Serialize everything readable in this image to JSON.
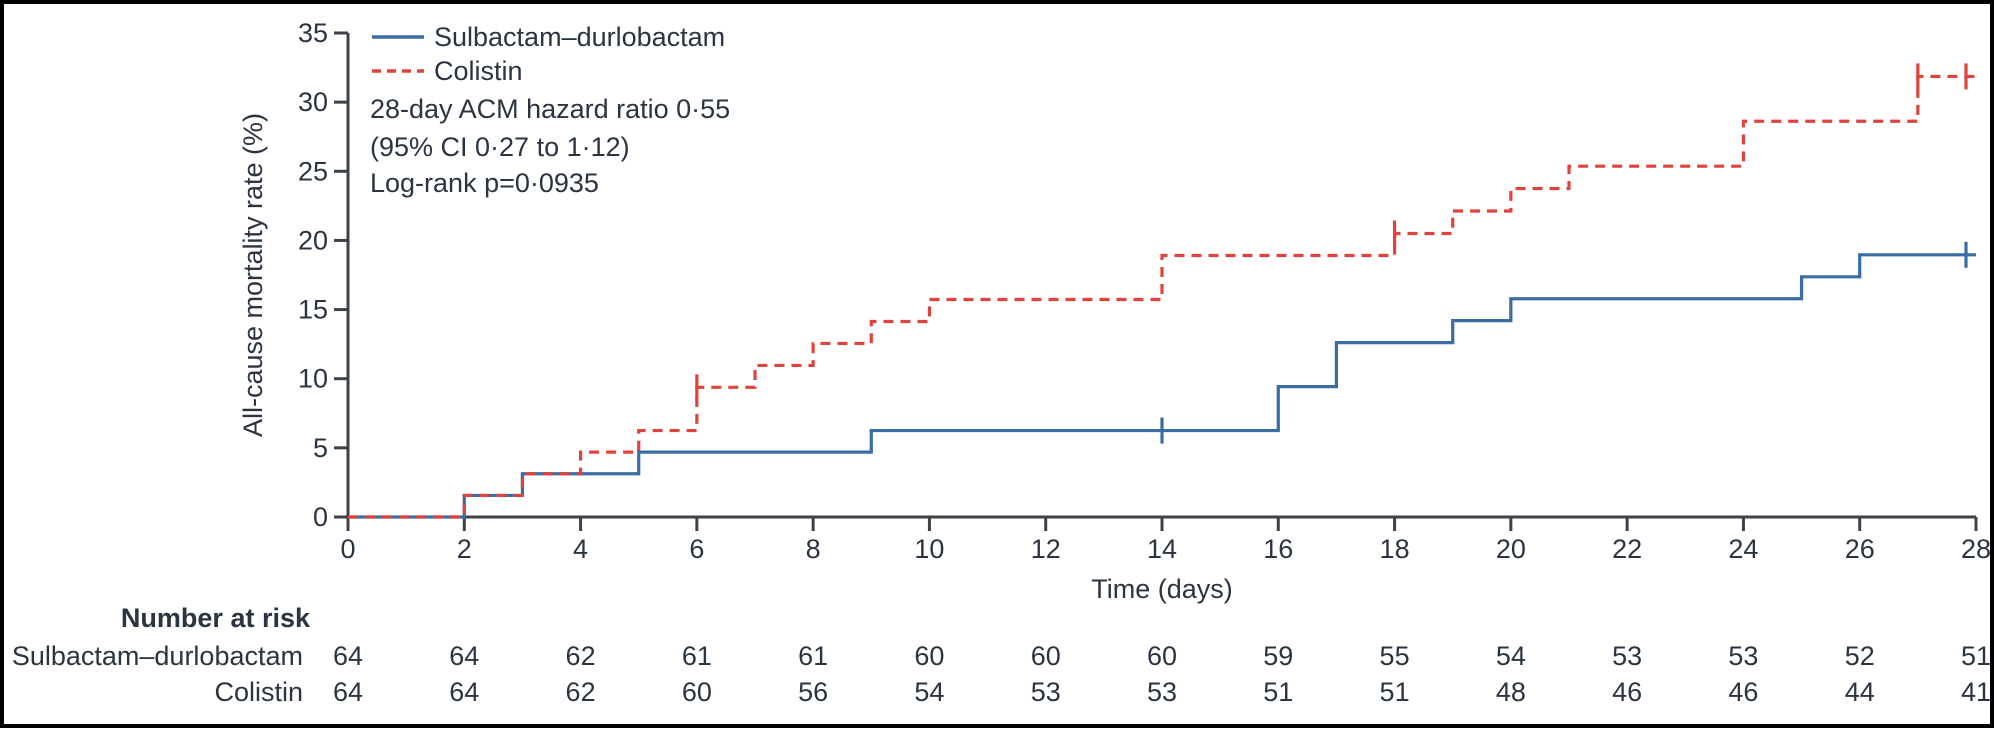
{
  "figure": {
    "y_axis_title": "All-cause mortality rate (%)",
    "x_axis_title": "Time (days)",
    "legend": {
      "items": [
        {
          "label": "Sulbactam–durlobactam",
          "color": "#3A6DA6",
          "line_style": "solid"
        },
        {
          "label": "Colistin",
          "color": "#E0433C",
          "line_style": "dashed"
        }
      ]
    },
    "annotations": {
      "line1": "28-day ACM hazard ratio 0·55",
      "line2": "(95% CI 0·27 to 1·12)",
      "line3": "Log-rank p=0·0935"
    },
    "risk_table": {
      "title": "Number at risk",
      "rows": [
        {
          "label": "Sulbactam–durlobactam",
          "values": [
            64,
            64,
            62,
            61,
            61,
            60,
            60,
            60,
            59,
            55,
            54,
            53,
            53,
            52,
            51
          ]
        },
        {
          "label": "Colistin",
          "values": [
            64,
            64,
            62,
            60,
            56,
            54,
            53,
            53,
            51,
            51,
            48,
            46,
            46,
            44,
            41
          ]
        }
      ]
    },
    "colors": {
      "axis": "#3d4248",
      "text": "#2b3542",
      "border": "#000000",
      "background": "#ffffff"
    }
  },
  "chart_data": {
    "type": "line",
    "subtype": "kaplan-meier-cumulative-incidence-step",
    "title": "",
    "xlabel": "Time (days)",
    "ylabel": "All-cause mortality rate (%)",
    "xlim": [
      0,
      28
    ],
    "ylim": [
      0,
      35
    ],
    "x_ticks": [
      0,
      2,
      4,
      6,
      8,
      10,
      12,
      14,
      16,
      18,
      20,
      22,
      24,
      26,
      28
    ],
    "y_ticks": [
      0,
      5,
      10,
      15,
      20,
      25,
      30,
      35
    ],
    "grid": false,
    "legend_position": "top-left-inside",
    "series": [
      {
        "name": "Sulbactam–durlobactam",
        "color": "#3A6DA6",
        "dash": "solid",
        "step_points": [
          [
            2,
            1.56
          ],
          [
            3,
            3.13
          ],
          [
            5,
            4.69
          ],
          [
            9,
            6.25
          ],
          [
            16,
            9.43
          ],
          [
            17,
            12.61
          ],
          [
            19,
            14.2
          ],
          [
            20,
            15.78
          ],
          [
            25,
            17.37
          ],
          [
            26,
            18.96
          ],
          [
            28,
            18.96
          ]
        ],
        "censor_marks": [
          [
            14,
            6.25
          ],
          [
            28,
            18.96
          ]
        ]
      },
      {
        "name": "Colistin",
        "color": "#E0433C",
        "dash": "dashed",
        "step_points": [
          [
            2,
            1.56
          ],
          [
            3,
            3.13
          ],
          [
            4,
            4.69
          ],
          [
            5,
            6.25
          ],
          [
            6,
            9.38
          ],
          [
            7,
            10.96
          ],
          [
            8,
            12.55
          ],
          [
            9,
            14.14
          ],
          [
            10,
            15.73
          ],
          [
            14,
            18.91
          ],
          [
            18,
            20.5
          ],
          [
            19,
            22.13
          ],
          [
            20,
            23.75
          ],
          [
            21,
            25.37
          ],
          [
            24,
            28.62
          ],
          [
            27,
            31.86
          ],
          [
            28,
            31.86
          ]
        ],
        "censor_marks": [
          [
            6,
            9.38
          ],
          [
            18,
            20.5
          ],
          [
            27,
            31.86
          ],
          [
            28,
            31.86
          ]
        ]
      }
    ],
    "annotation_text": [
      "28-day ACM hazard ratio 0·55",
      "(95% CI 0·27 to 1·12)",
      "Log-rank p=0·0935"
    ]
  }
}
